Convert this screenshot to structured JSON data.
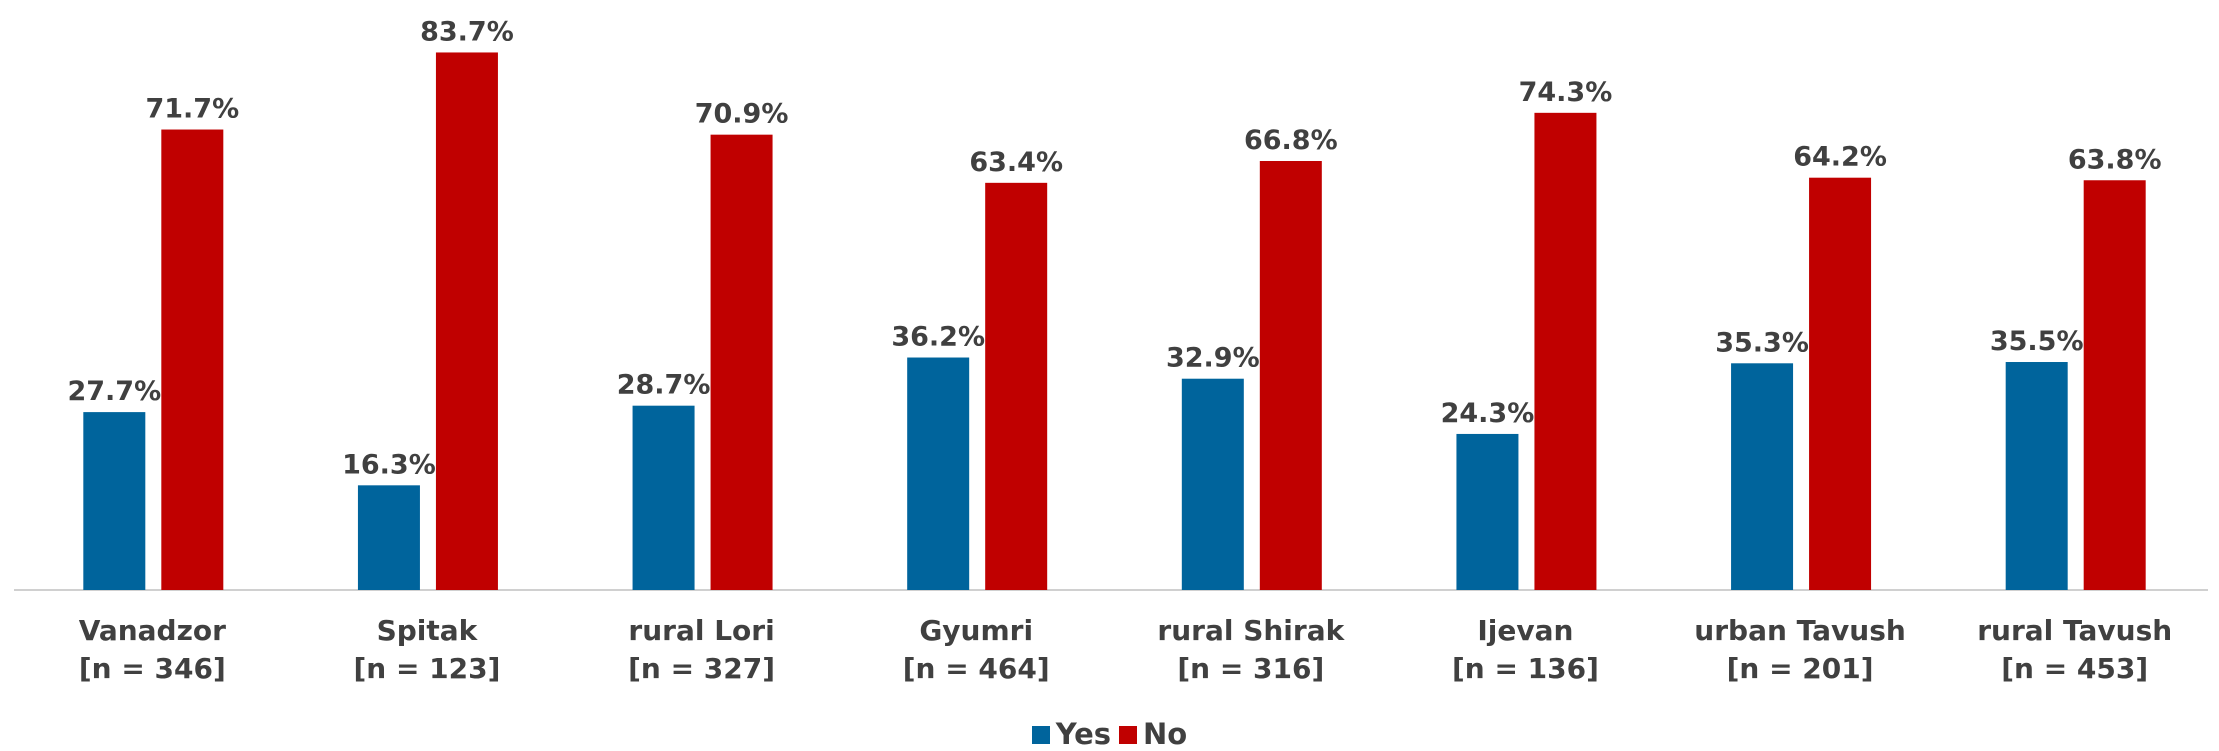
{
  "chart_data": {
    "type": "bar",
    "categories": [
      "Vanadzor\n[n = 346]",
      "Spitak\n[n = 123]",
      "rural Lori\n[n = 327]",
      "Gyumri\n[n = 464]",
      "rural Shirak\n[n = 316]",
      "Ijevan\n[n = 136]",
      "urban Tavush\n[n = 201]",
      "rural Tavush\n[n = 453]"
    ],
    "series": [
      {
        "name": "Yes",
        "color": "#00649c",
        "values": [
          27.7,
          16.3,
          28.7,
          36.2,
          32.9,
          24.3,
          35.3,
          35.5
        ],
        "value_labels": [
          "27.7%",
          "16.3%",
          "28.7%",
          "36.2%",
          "32.9%",
          "24.3%",
          "35.3%",
          "35.5%"
        ]
      },
      {
        "name": "No",
        "color": "#c00000",
        "values": [
          71.7,
          83.7,
          70.9,
          63.4,
          66.8,
          74.3,
          64.2,
          63.8
        ],
        "value_labels": [
          "71.7%",
          "83.7%",
          "70.9%",
          "63.4%",
          "66.8%",
          "74.3%",
          "64.2%",
          "63.8%"
        ]
      }
    ],
    "ylim": [
      0,
      90
    ],
    "legend": "bottom"
  }
}
